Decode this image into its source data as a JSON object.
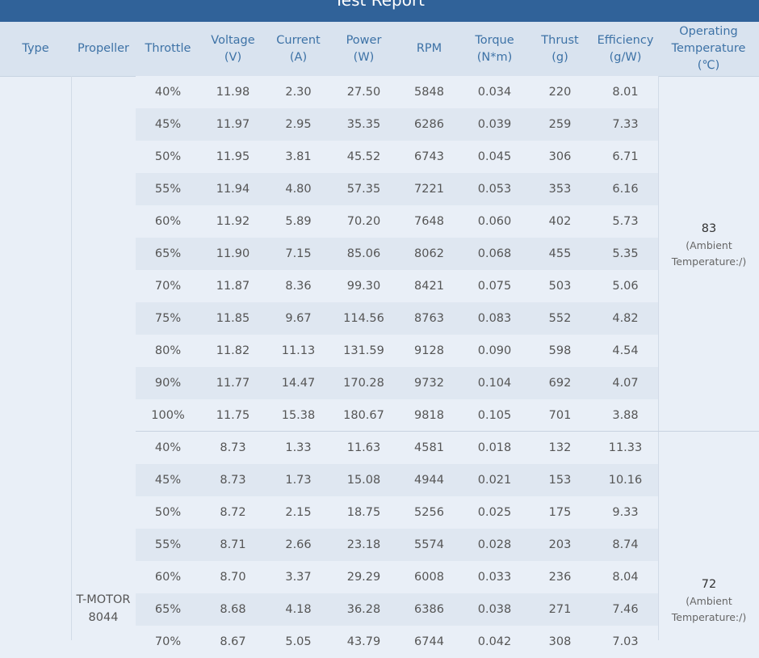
{
  "title": "Test Report",
  "headers": [
    {
      "key": "type",
      "label": "Type"
    },
    {
      "key": "propeller",
      "label": "Propeller"
    },
    {
      "key": "throttle",
      "label": "Throttle"
    },
    {
      "key": "voltage",
      "label": "Voltage\n(V)"
    },
    {
      "key": "current",
      "label": "Current\n(A)"
    },
    {
      "key": "power",
      "label": "Power\n(W)"
    },
    {
      "key": "rpm",
      "label": "RPM"
    },
    {
      "key": "torque",
      "label": "Torque\n(N*m)"
    },
    {
      "key": "thrust",
      "label": "Thrust\n(g)"
    },
    {
      "key": "efficiency",
      "label": "Efficiency\n(g/W)"
    },
    {
      "key": "optemp",
      "label": "Operating\nTemperature\n(℃)"
    }
  ],
  "propeller": "T-MOTOR\n8044",
  "groups": [
    {
      "op_temp": "83",
      "ambient": "(Ambient\nTemperature:/)",
      "rows": [
        [
          "40%",
          "11.98",
          "2.30",
          "27.50",
          "5848",
          "0.034",
          "220",
          "8.01"
        ],
        [
          "45%",
          "11.97",
          "2.95",
          "35.35",
          "6286",
          "0.039",
          "259",
          "7.33"
        ],
        [
          "50%",
          "11.95",
          "3.81",
          "45.52",
          "6743",
          "0.045",
          "306",
          "6.71"
        ],
        [
          "55%",
          "11.94",
          "4.80",
          "57.35",
          "7221",
          "0.053",
          "353",
          "6.16"
        ],
        [
          "60%",
          "11.92",
          "5.89",
          "70.20",
          "7648",
          "0.060",
          "402",
          "5.73"
        ],
        [
          "65%",
          "11.90",
          "7.15",
          "85.06",
          "8062",
          "0.068",
          "455",
          "5.35"
        ],
        [
          "70%",
          "11.87",
          "8.36",
          "99.30",
          "8421",
          "0.075",
          "503",
          "5.06"
        ],
        [
          "75%",
          "11.85",
          "9.67",
          "114.56",
          "8763",
          "0.083",
          "552",
          "4.82"
        ],
        [
          "80%",
          "11.82",
          "11.13",
          "131.59",
          "9128",
          "0.090",
          "598",
          "4.54"
        ],
        [
          "90%",
          "11.77",
          "14.47",
          "170.28",
          "9732",
          "0.104",
          "692",
          "4.07"
        ],
        [
          "100%",
          "11.75",
          "15.38",
          "180.67",
          "9818",
          "0.105",
          "701",
          "3.88"
        ]
      ]
    },
    {
      "op_temp": "72",
      "ambient": "(Ambient\nTemperature:/)",
      "rows": [
        [
          "40%",
          "8.73",
          "1.33",
          "11.63",
          "4581",
          "0.018",
          "132",
          "11.33"
        ],
        [
          "45%",
          "8.73",
          "1.73",
          "15.08",
          "4944",
          "0.021",
          "153",
          "10.16"
        ],
        [
          "50%",
          "8.72",
          "2.15",
          "18.75",
          "5256",
          "0.025",
          "175",
          "9.33"
        ],
        [
          "55%",
          "8.71",
          "2.66",
          "23.18",
          "5574",
          "0.028",
          "203",
          "8.74"
        ],
        [
          "60%",
          "8.70",
          "3.37",
          "29.29",
          "6008",
          "0.033",
          "236",
          "8.04"
        ],
        [
          "65%",
          "8.68",
          "4.18",
          "36.28",
          "6386",
          "0.038",
          "271",
          "7.46"
        ],
        [
          "70%",
          "8.67",
          "5.05",
          "43.79",
          "6744",
          "0.042",
          "308",
          "7.03"
        ]
      ]
    }
  ]
}
